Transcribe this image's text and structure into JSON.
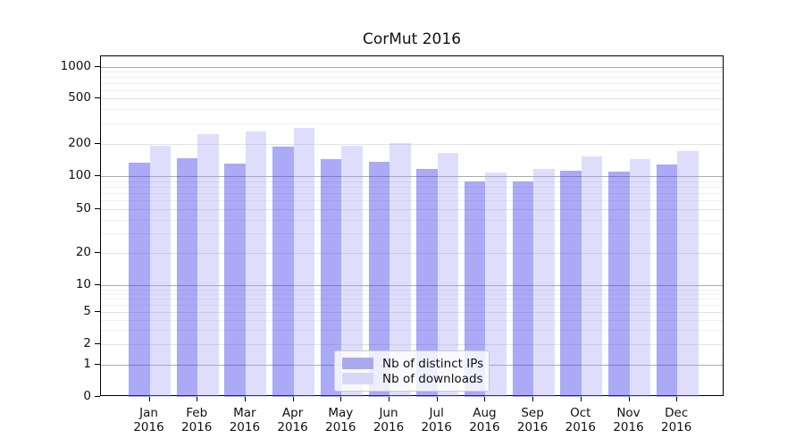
{
  "chart_data": {
    "type": "bar",
    "title": "CorMut 2016",
    "categories": [
      "Jan",
      "Feb",
      "Mar",
      "Apr",
      "May",
      "Jun",
      "Jul",
      "Aug",
      "Sep",
      "Oct",
      "Nov",
      "Dec"
    ],
    "year": "2016",
    "series": [
      {
        "name": "Nb of distinct IPs",
        "values": [
          133,
          146,
          131,
          188,
          144,
          136,
          117,
          90,
          90,
          112,
          111,
          129
        ],
        "swatch_color": "#a9a9f0",
        "fill_color": "rgba(75,75,235,0.47)"
      },
      {
        "name": "Nb of downloads",
        "values": [
          192,
          243,
          256,
          277,
          192,
          204,
          165,
          107,
          116,
          153,
          143,
          170
        ],
        "swatch_color": "#d8d8f6",
        "fill_color": "rgba(160,160,245,0.35)"
      }
    ],
    "y_axis": {
      "scale": "log (0 baseline)",
      "ticks": [
        1000,
        500,
        200,
        100,
        50,
        20,
        10,
        5,
        2,
        1,
        0
      ]
    },
    "grid": "on",
    "legend_position": "lower center",
    "colors": {
      "major_grid": "#ababab",
      "labeled_grid": "#e2e2e2",
      "minor_grid": "#efefef"
    }
  }
}
